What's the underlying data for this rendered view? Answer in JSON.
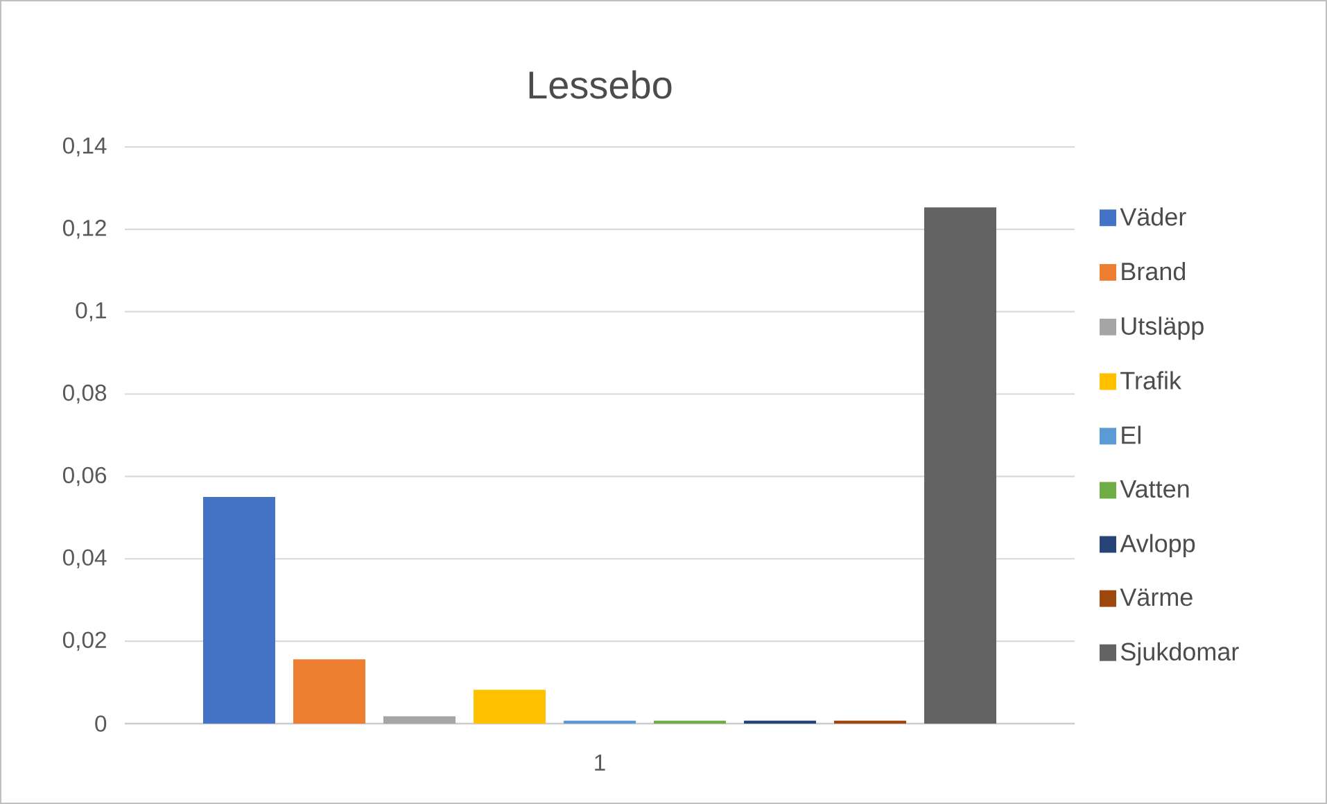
{
  "chart_data": {
    "type": "bar",
    "title": "Lessebo",
    "categories": [
      "1"
    ],
    "series": [
      {
        "name": "Väder",
        "color": "#4472c4",
        "values": [
          0.055
        ]
      },
      {
        "name": "Brand",
        "color": "#ed7d31",
        "values": [
          0.0156
        ]
      },
      {
        "name": "Utsläpp",
        "color": "#a5a5a5",
        "values": [
          0.0018
        ]
      },
      {
        "name": "Trafik",
        "color": "#ffc000",
        "values": [
          0.0082
        ]
      },
      {
        "name": "El",
        "color": "#5b9bd5",
        "values": [
          0.0007
        ]
      },
      {
        "name": "Vatten",
        "color": "#70ad47",
        "values": [
          0.0007
        ]
      },
      {
        "name": "Avlopp",
        "color": "#264478",
        "values": [
          0.0007
        ]
      },
      {
        "name": "Värme",
        "color": "#9e480e",
        "values": [
          0.0007
        ]
      },
      {
        "name": "Sjukdomar",
        "color": "#636363",
        "values": [
          0.1253
        ]
      }
    ],
    "ylim": [
      0,
      0.14
    ],
    "yticks": [
      0,
      {
        "value": 0.02,
        "label": "0,02"
      },
      {
        "value": 0.04,
        "label": "0,04"
      },
      {
        "value": 0.06,
        "label": "0,06"
      },
      {
        "value": 0.08,
        "label": "0,08"
      },
      {
        "value": 0.1,
        "label": "0,1"
      },
      {
        "value": 0.12,
        "label": "0,12"
      },
      {
        "value": 0.14,
        "label": "0,14"
      }
    ],
    "grid": "y",
    "legend": "right"
  }
}
